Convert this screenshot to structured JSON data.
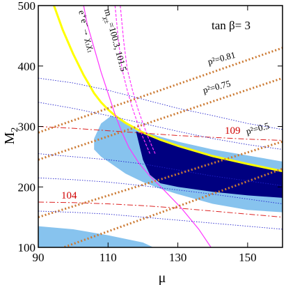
{
  "chart_data": {
    "type": "line",
    "title": "",
    "xlabel": "μ",
    "ylabel": "M",
    "ylabel_sub": "2",
    "xlim": [
      90,
      160
    ],
    "ylim": [
      100,
      500
    ],
    "xticks": [
      90,
      110,
      130,
      150
    ],
    "yticks": [
      100,
      200,
      300,
      400,
      500
    ],
    "tick_labels_x": [
      "90",
      "110",
      "130",
      "150"
    ],
    "tick_labels_y": [
      "100",
      "200",
      "300",
      "400",
      "500"
    ],
    "grid": false,
    "legend": "none",
    "colors": {
      "light_region": "#87c3ee",
      "dark_region": "#000080",
      "yellow_boundary": "#ffff00",
      "magenta": "#ff33ff",
      "orange": "#cc7a33",
      "red": "#dd2222",
      "blue_dotted": "#2222cc"
    },
    "annotations": {
      "tanbeta": "tan β= 3",
      "ee_label": "e⁺e⁻→ χ₁χ₁",
      "chargino": "m",
      "chargino_sub": "χ±",
      "chargino_vals": "=100.3, 101.5",
      "p081": "p²=0.81",
      "p075": "p²=0.75",
      "p05": "p²=0.5",
      "h109": "109",
      "h104": "104"
    },
    "series": [
      {
        "kind": "yellow",
        "x": [
          94.5,
          97,
          100,
          103,
          106,
          108,
          110,
          112,
          115,
          120,
          125,
          130,
          140,
          150,
          160
        ],
        "y": [
          500,
          460,
          420,
          385,
          355,
          340,
          328,
          318,
          306,
          290,
          278,
          268,
          251,
          238,
          226
        ]
      },
      {
        "kind": "magenta-solid",
        "x": [
          103,
          104,
          106,
          108,
          110,
          112,
          114,
          116,
          119,
          122,
          126,
          131,
          136,
          139.5
        ],
        "y": [
          500,
          470,
          430,
          390,
          355,
          320,
          290,
          265,
          238,
          218,
          195,
          165,
          130,
          100
        ]
      },
      {
        "kind": "magenta-dashed-1",
        "x": [
          112,
          113,
          114,
          115.5,
          117,
          118.5,
          120,
          122
        ],
        "y": [
          500,
          440,
          395,
          360,
          330,
          305,
          282,
          255
        ]
      },
      {
        "kind": "magenta-dashed-2",
        "x": [
          113.5,
          114.5,
          115.5,
          117,
          118.5,
          120,
          121.5,
          123.5
        ],
        "y": [
          500,
          440,
          395,
          360,
          330,
          305,
          282,
          255
        ]
      },
      {
        "kind": "red-dashdot-109",
        "x": [
          90,
          100,
          110,
          120,
          130,
          140,
          150,
          160
        ],
        "y": [
          300,
          297,
          293,
          289,
          285,
          282,
          279,
          277
        ]
      },
      {
        "kind": "red-dashdot-104",
        "x": [
          90,
          100,
          110,
          120,
          130,
          140,
          150,
          160
        ],
        "y": [
          175,
          174,
          172,
          169,
          165,
          160,
          155,
          150
        ]
      },
      {
        "kind": "orange-p081",
        "x": [
          90,
          160
        ],
        "y": [
          290,
          430
        ]
      },
      {
        "kind": "orange-p075",
        "x": [
          90,
          160
        ],
        "y": [
          245,
          380
        ]
      },
      {
        "kind": "orange-p05",
        "x": [
          90,
          160
        ],
        "y": [
          150,
          275
        ]
      },
      {
        "kind": "orange-low",
        "x": [
          90,
          160
        ],
        "y": [
          85,
          230
        ]
      },
      {
        "kind": "blue-dotted-1",
        "x": [
          90,
          100,
          110,
          120,
          130,
          140,
          150,
          160
        ],
        "y": [
          380,
          372,
          360,
          345,
          330,
          318,
          305,
          295
        ]
      },
      {
        "kind": "blue-dotted-2",
        "x": [
          90,
          100,
          110,
          120,
          130,
          140,
          150,
          160
        ],
        "y": [
          340,
          330,
          318,
          305,
          292,
          280,
          270,
          262
        ]
      },
      {
        "kind": "blue-dotted-3",
        "x": [
          90,
          100,
          110,
          120,
          130,
          140,
          150,
          160
        ],
        "y": [
          255,
          250,
          245,
          238,
          228,
          218,
          210,
          202
        ]
      },
      {
        "kind": "blue-dotted-4",
        "x": [
          90,
          100,
          110,
          120,
          130,
          140,
          150,
          160
        ],
        "y": [
          215,
          212,
          208,
          202,
          195,
          188,
          180,
          172
        ]
      },
      {
        "kind": "blue-dotted-5",
        "x": [
          90,
          100,
          110,
          120,
          130,
          140,
          150,
          160
        ],
        "y": [
          160,
          158,
          155,
          150,
          145,
          140,
          135,
          130
        ]
      }
    ],
    "regions": [
      {
        "kind": "light-band",
        "x": [
          111,
          115,
          120,
          125,
          130,
          140,
          150,
          160,
          160,
          150,
          140,
          130,
          125,
          120,
          115,
          111,
          108,
          106,
          106,
          108
        ],
        "y": [
          318,
          305,
          292,
          283,
          275,
          262,
          252,
          242,
          158,
          162,
          172,
          188,
          197,
          208,
          222,
          238,
          250,
          262,
          280,
          305
        ]
      },
      {
        "kind": "light-bottom",
        "x": [
          90,
          100,
          110,
          120,
          123,
          90
        ],
        "y": [
          135,
          130,
          120,
          108,
          100,
          100
        ]
      },
      {
        "kind": "dark-band",
        "x": [
          118,
          125,
          130,
          140,
          150,
          160,
          160,
          150,
          140,
          130,
          125,
          122,
          120
        ],
        "y": [
          292,
          278,
          268,
          251,
          238,
          226,
          182,
          186,
          192,
          200,
          206,
          220,
          245
        ]
      }
    ]
  }
}
